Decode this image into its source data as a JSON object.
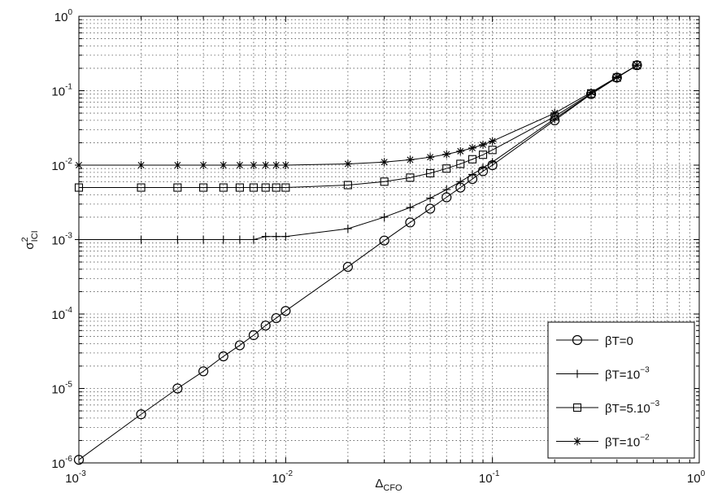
{
  "chart_data": {
    "type": "line",
    "x_scale": "log",
    "y_scale": "log",
    "xlim": [
      0.001,
      1
    ],
    "ylim": [
      1e-06,
      1
    ],
    "grid": true,
    "legend_position": "bottom-right",
    "xlabel": {
      "base": "Δ",
      "sub": "CFO"
    },
    "ylabel": {
      "base": "σ",
      "sup": "2",
      "sub": "ICI"
    },
    "x_ticks": [
      {
        "value": 0.001,
        "base": "10",
        "exp": "-3"
      },
      {
        "value": 0.01,
        "base": "10",
        "exp": "-2"
      },
      {
        "value": 0.1,
        "base": "10",
        "exp": "-1"
      },
      {
        "value": 1,
        "base": "10",
        "exp": "0"
      }
    ],
    "y_ticks": [
      {
        "value": 1e-06,
        "base": "10",
        "exp": "-6"
      },
      {
        "value": 1e-05,
        "base": "10",
        "exp": "-5"
      },
      {
        "value": 0.0001,
        "base": "10",
        "exp": "-4"
      },
      {
        "value": 0.001,
        "base": "10",
        "exp": "-3"
      },
      {
        "value": 0.01,
        "base": "10",
        "exp": "-2"
      },
      {
        "value": 0.1,
        "base": "10",
        "exp": "-1"
      },
      {
        "value": 1,
        "base": "10",
        "exp": "0"
      }
    ],
    "series": [
      {
        "label": {
          "base": "βT=0",
          "exp": ""
        },
        "marker": "circle",
        "x": [
          0.001,
          0.002,
          0.003,
          0.004,
          0.005,
          0.006,
          0.007,
          0.008,
          0.009,
          0.01,
          0.02,
          0.03,
          0.04,
          0.05,
          0.06,
          0.07,
          0.08,
          0.09,
          0.1,
          0.2,
          0.3,
          0.4,
          0.5
        ],
        "y": [
          1.1e-06,
          4.5e-06,
          1e-05,
          1.7e-05,
          2.7e-05,
          3.8e-05,
          5.2e-05,
          7e-05,
          8.8e-05,
          0.00011,
          0.00043,
          0.00097,
          0.0017,
          0.0026,
          0.0037,
          0.005,
          0.0065,
          0.0083,
          0.01,
          0.04,
          0.09,
          0.15,
          0.22
        ]
      },
      {
        "label": {
          "base": "βT=10",
          "exp": "−3"
        },
        "marker": "plus",
        "x": [
          0.001,
          0.002,
          0.003,
          0.004,
          0.005,
          0.006,
          0.007,
          0.008,
          0.009,
          0.01,
          0.02,
          0.03,
          0.04,
          0.05,
          0.06,
          0.07,
          0.08,
          0.09,
          0.1,
          0.2,
          0.3,
          0.4,
          0.5
        ],
        "y": [
          0.001,
          0.001,
          0.001,
          0.001,
          0.001,
          0.001,
          0.001,
          0.0011,
          0.0011,
          0.0011,
          0.0014,
          0.002,
          0.0027,
          0.0036,
          0.0047,
          0.006,
          0.0075,
          0.0092,
          0.011,
          0.042,
          0.09,
          0.15,
          0.22
        ]
      },
      {
        "label": {
          "base": "βT=5.10",
          "exp": "−3"
        },
        "marker": "square",
        "x": [
          0.001,
          0.002,
          0.003,
          0.004,
          0.005,
          0.006,
          0.007,
          0.008,
          0.009,
          0.01,
          0.02,
          0.03,
          0.04,
          0.05,
          0.06,
          0.07,
          0.08,
          0.09,
          0.1,
          0.2,
          0.3,
          0.4,
          0.5
        ],
        "y": [
          0.005,
          0.005,
          0.005,
          0.005,
          0.005,
          0.005,
          0.005,
          0.005,
          0.005,
          0.005,
          0.0054,
          0.006,
          0.0068,
          0.0078,
          0.009,
          0.0104,
          0.012,
          0.0138,
          0.016,
          0.045,
          0.092,
          0.15,
          0.22
        ]
      },
      {
        "label": {
          "base": "βT=10",
          "exp": "−2"
        },
        "marker": "star",
        "x": [
          0.001,
          0.002,
          0.003,
          0.004,
          0.005,
          0.006,
          0.007,
          0.008,
          0.009,
          0.01,
          0.02,
          0.03,
          0.04,
          0.05,
          0.06,
          0.07,
          0.08,
          0.09,
          0.1,
          0.2,
          0.3,
          0.4,
          0.5
        ],
        "y": [
          0.01,
          0.01,
          0.01,
          0.01,
          0.01,
          0.01,
          0.01,
          0.01,
          0.01,
          0.01,
          0.0104,
          0.011,
          0.0118,
          0.0128,
          0.014,
          0.0154,
          0.017,
          0.0188,
          0.021,
          0.05,
          0.095,
          0.152,
          0.22
        ]
      }
    ]
  }
}
